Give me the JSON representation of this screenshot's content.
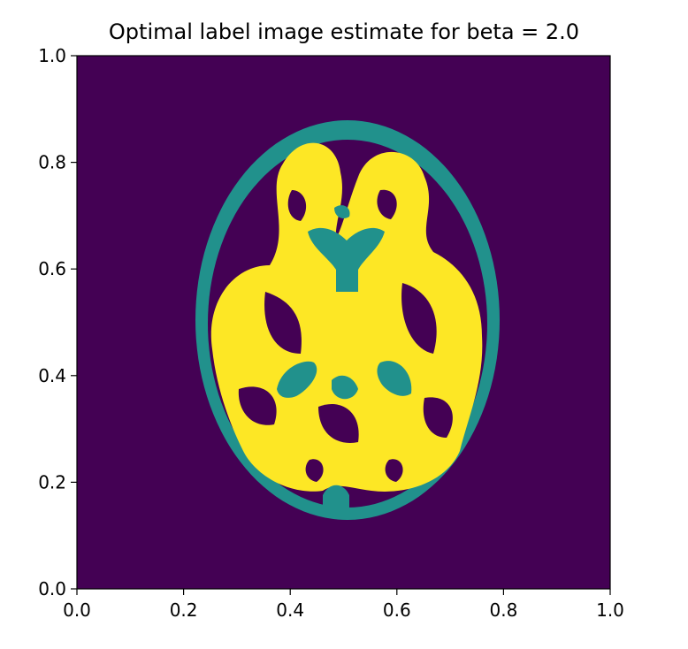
{
  "chart_data": {
    "type": "heatmap",
    "title": "Optimal label image estimate for beta = 2.0",
    "xlabel": "",
    "ylabel": "",
    "xlim": [
      0.0,
      1.0
    ],
    "ylim": [
      0.0,
      1.0
    ],
    "xticks": [
      "0.0",
      "0.2",
      "0.4",
      "0.6",
      "0.8",
      "1.0"
    ],
    "yticks": [
      "0.0",
      "0.2",
      "0.4",
      "0.6",
      "0.8",
      "1.0"
    ],
    "grid": false,
    "legend": "none",
    "colormap": "viridis",
    "labels": [
      0,
      1,
      2
    ],
    "label_colors": {
      "0": "#440154",
      "1": "#21918c",
      "2": "#fde725"
    },
    "description_of_regions": {
      "background_label": 0,
      "skull_csf_ring_label": 1,
      "white_matter_label": 2
    },
    "outline_extent": {
      "head_x_range": [
        0.22,
        0.79
      ],
      "head_y_range": [
        0.15,
        0.88
      ]
    }
  }
}
